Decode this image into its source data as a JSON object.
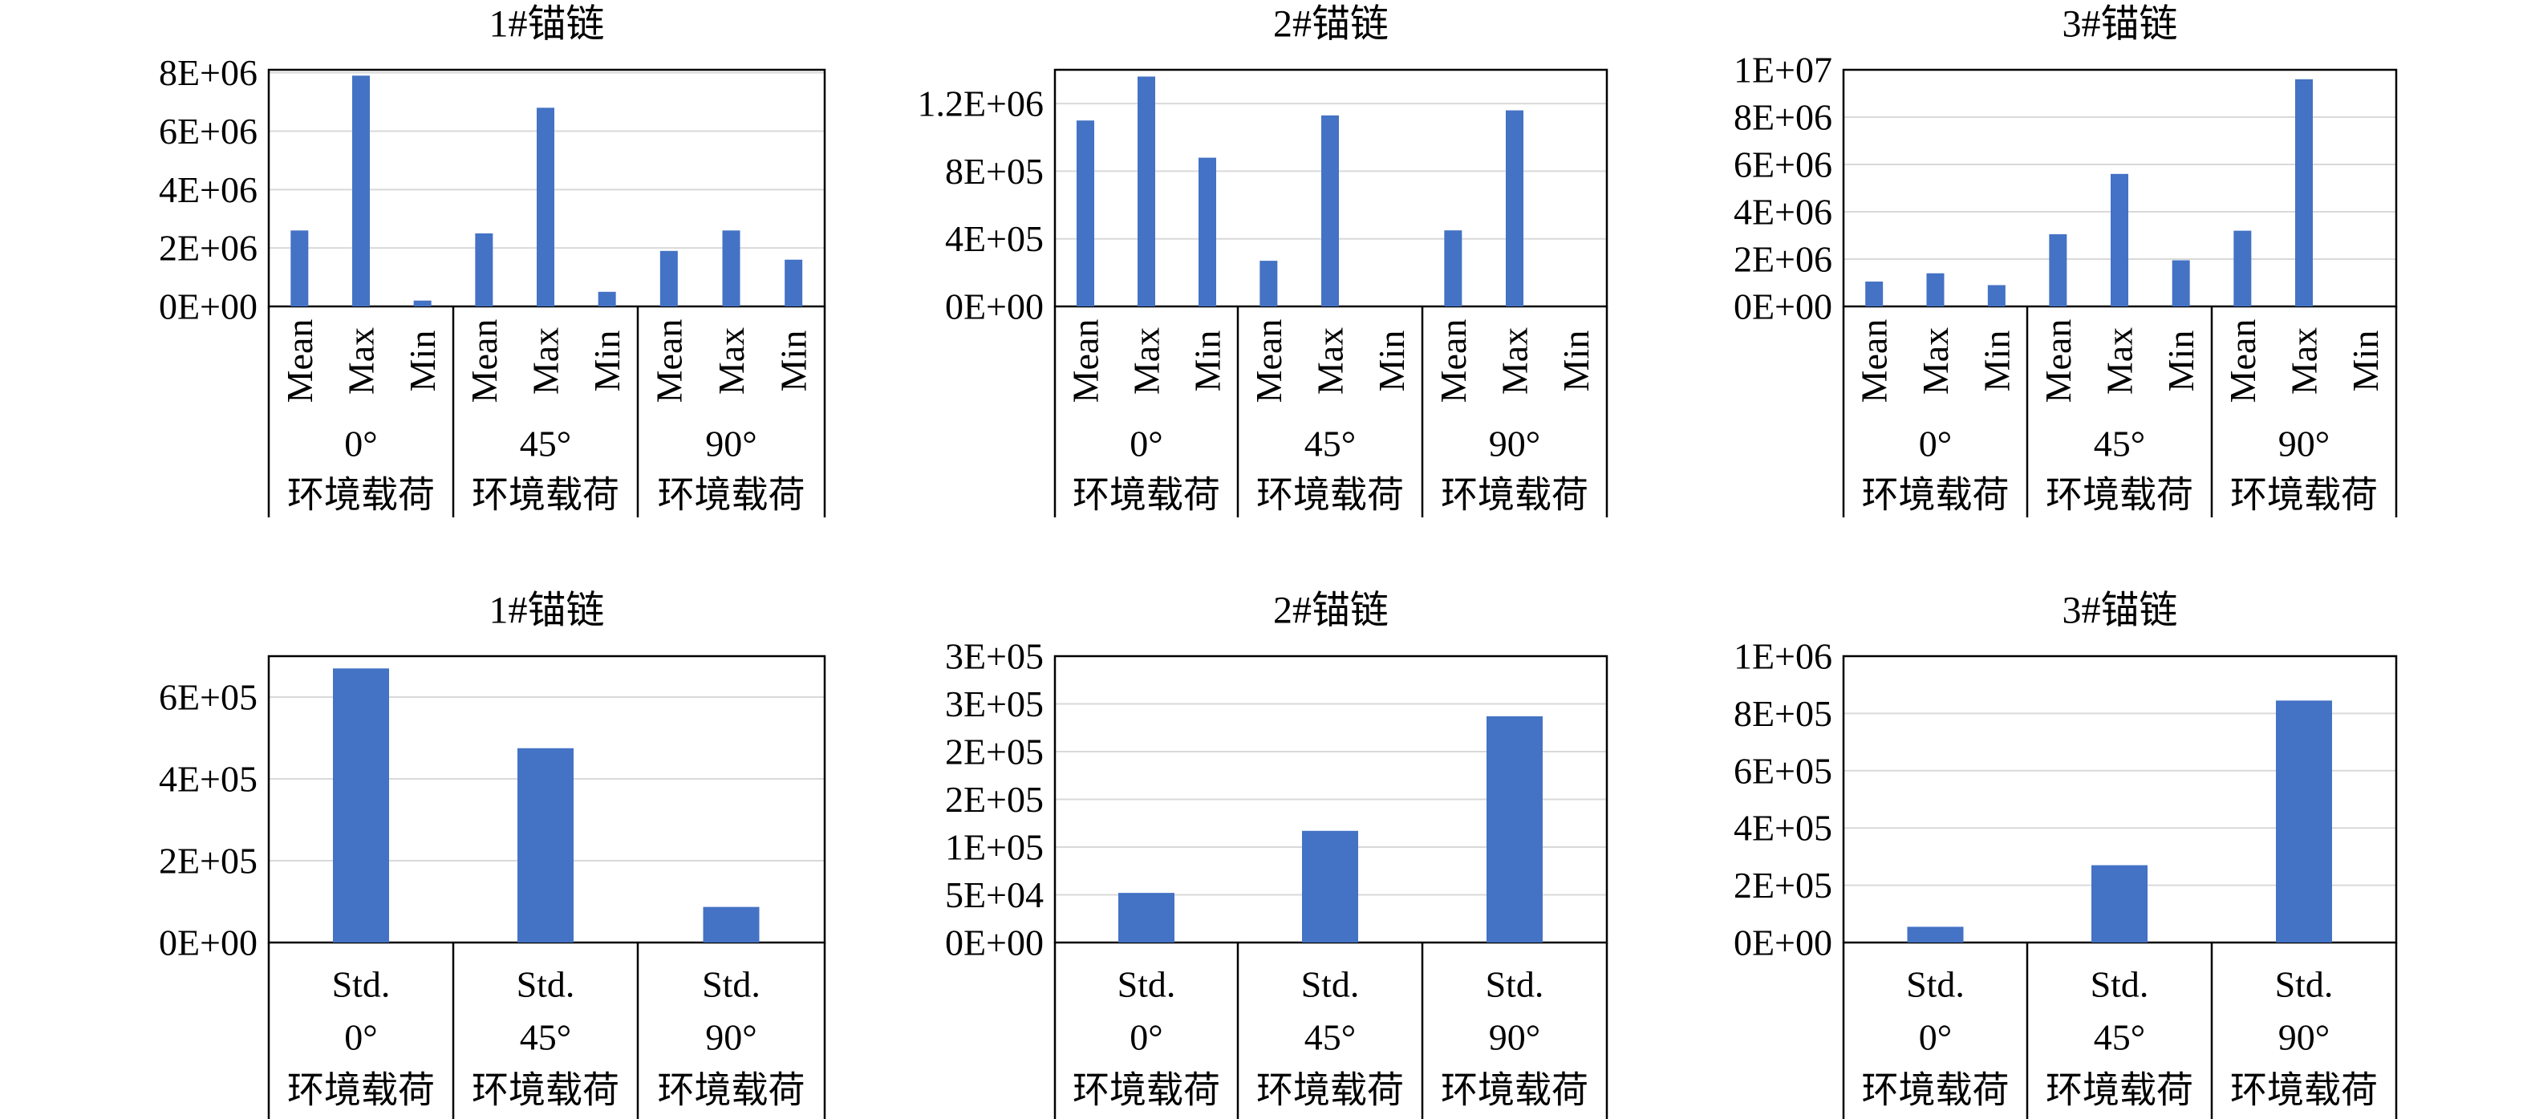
{
  "colors": {
    "bar": "#4472C4",
    "grid": "#d9d9d9",
    "axis": "#000000"
  },
  "group_subtitle": "环境载荷",
  "chart_data": [
    {
      "type": "bar",
      "title": "1#锚链",
      "yticks": [
        "0E+00",
        "2E+06",
        "4E+06",
        "6E+06",
        "8E+06"
      ],
      "ylim": [
        0,
        8100000
      ],
      "groups": [
        {
          "label": "0°",
          "categories": [
            "Mean",
            "Max",
            "Min"
          ],
          "values": [
            2600000,
            7900000,
            200000
          ]
        },
        {
          "label": "45°",
          "categories": [
            "Mean",
            "Max",
            "Min"
          ],
          "values": [
            2500000,
            6800000,
            500000
          ]
        },
        {
          "label": "90°",
          "categories": [
            "Mean",
            "Max",
            "Min"
          ],
          "values": [
            1900000,
            2600000,
            1600000
          ]
        }
      ],
      "grid": true,
      "legend": "none"
    },
    {
      "type": "bar",
      "title": "2#锚链",
      "yticks": [
        "0E+00",
        "4E+05",
        "8E+05",
        "1.2E+06"
      ],
      "ylim": [
        0,
        1400000
      ],
      "groups": [
        {
          "label": "0°",
          "categories": [
            "Mean",
            "Max",
            "Min"
          ],
          "values": [
            1100000,
            1360000,
            880000
          ]
        },
        {
          "label": "45°",
          "categories": [
            "Mean",
            "Max",
            "Min"
          ],
          "values": [
            270000,
            1130000,
            0
          ]
        },
        {
          "label": "90°",
          "categories": [
            "Mean",
            "Max",
            "Min"
          ],
          "values": [
            450000,
            1160000,
            0
          ]
        }
      ],
      "grid": true,
      "legend": "none"
    },
    {
      "type": "bar",
      "title": "3#锚链",
      "yticks": [
        "0E+00",
        "2E+06",
        "4E+06",
        "6E+06",
        "8E+06",
        "1E+07"
      ],
      "ylim": [
        0,
        10000000
      ],
      "groups": [
        {
          "label": "0°",
          "categories": [
            "Mean",
            "Max",
            "Min"
          ],
          "values": [
            1050000,
            1400000,
            900000
          ]
        },
        {
          "label": "45°",
          "categories": [
            "Mean",
            "Max",
            "Min"
          ],
          "values": [
            3050000,
            5600000,
            1950000
          ]
        },
        {
          "label": "90°",
          "categories": [
            "Mean",
            "Max",
            "Min"
          ],
          "values": [
            3200000,
            9600000,
            0
          ]
        }
      ],
      "grid": true,
      "legend": "none"
    },
    {
      "type": "bar",
      "title": "1#锚链",
      "yticks": [
        "0E+00",
        "2E+05",
        "4E+05",
        "6E+05"
      ],
      "ylim": [
        0,
        700000
      ],
      "groups": [
        {
          "label": "0°",
          "categories": [
            "Std."
          ],
          "values": [
            670000
          ]
        },
        {
          "label": "45°",
          "categories": [
            "Std."
          ],
          "values": [
            475000
          ]
        },
        {
          "label": "90°",
          "categories": [
            "Std."
          ],
          "values": [
            87000
          ]
        }
      ],
      "grid": true,
      "legend": "none"
    },
    {
      "type": "bar",
      "title": "2#锚链",
      "yticks": [
        "0E+00",
        "5E+04",
        "1E+05",
        "2E+05",
        "2E+05",
        "3E+05",
        "3E+05"
      ],
      "ylim": [
        0,
        300000
      ],
      "groups": [
        {
          "label": "0°",
          "categories": [
            "Std."
          ],
          "values": [
            52000
          ]
        },
        {
          "label": "45°",
          "categories": [
            "Std."
          ],
          "values": [
            117000
          ]
        },
        {
          "label": "90°",
          "categories": [
            "Std."
          ],
          "values": [
            237000
          ]
        }
      ],
      "grid": true,
      "legend": "none"
    },
    {
      "type": "bar",
      "title": "3#锚链",
      "yticks": [
        "0E+00",
        "2E+05",
        "4E+05",
        "6E+05",
        "8E+05",
        "1E+06"
      ],
      "ylim": [
        0,
        1000000
      ],
      "groups": [
        {
          "label": "0°",
          "categories": [
            "Std."
          ],
          "values": [
            55000
          ]
        },
        {
          "label": "45°",
          "categories": [
            "Std."
          ],
          "values": [
            270000
          ]
        },
        {
          "label": "90°",
          "categories": [
            "Std."
          ],
          "values": [
            845000
          ]
        }
      ],
      "grid": true,
      "legend": "none"
    }
  ]
}
